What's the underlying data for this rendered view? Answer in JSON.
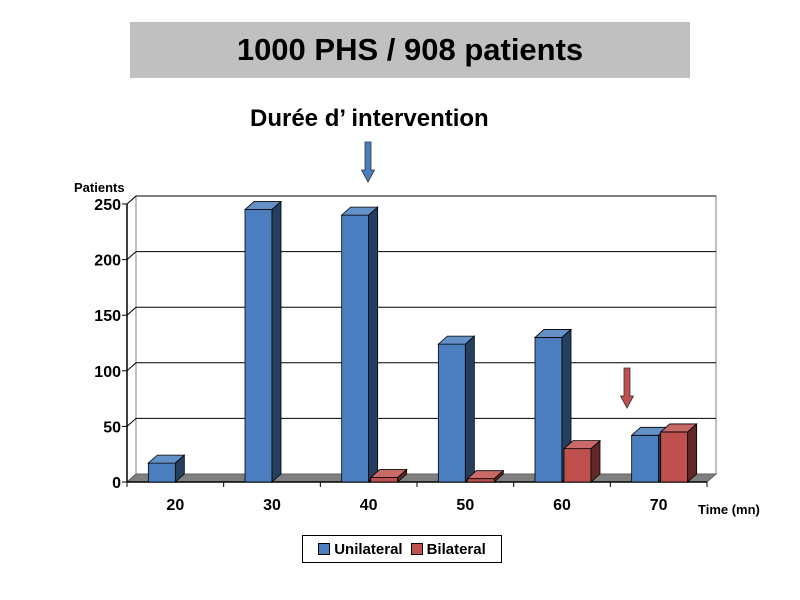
{
  "title": "1000 PHS / 908 patients",
  "subtitle": "Durée d’ intervention",
  "chart_data": {
    "type": "bar",
    "categories": [
      "20",
      "30",
      "40",
      "50",
      "60",
      "70"
    ],
    "series": [
      {
        "name": "Unilateral",
        "values": [
          17,
          245,
          240,
          124,
          130,
          42
        ],
        "color": "#4a7ebf"
      },
      {
        "name": "Bilateral",
        "values": [
          0,
          0,
          4,
          3,
          30,
          45
        ],
        "color": "#c0504d"
      }
    ],
    "title": "",
    "xlabel": "Time (mn)",
    "ylabel": "Patients",
    "ylim": [
      0,
      250
    ],
    "yticks": [
      0,
      50,
      100,
      150,
      200,
      250
    ],
    "grid": true,
    "legend": "bottom",
    "annotations": [
      {
        "type": "arrow-down",
        "category": "40",
        "color": "#4a7ebf"
      },
      {
        "type": "arrow-down",
        "category": "70",
        "color": "#c0504d"
      }
    ]
  }
}
